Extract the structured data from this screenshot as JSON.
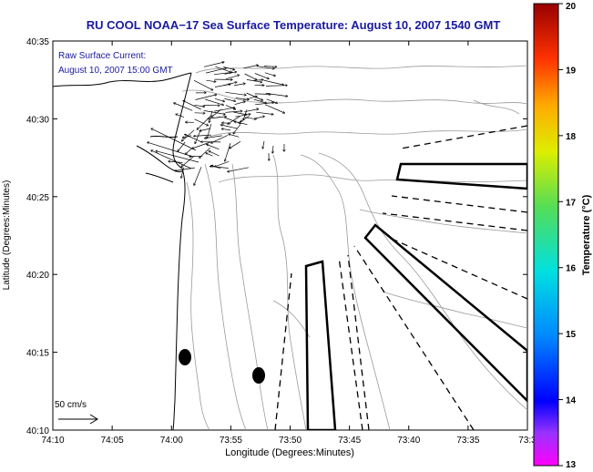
{
  "title": "RU COOL  NOAA−17  Sea Surface Temperature:  August 10, 2007 1540 GMT",
  "inset": {
    "line1": "Raw Surface Current:",
    "line2": "August 10, 2007 15:00 GMT"
  },
  "scale_label": "50 cm/s",
  "axes": {
    "xlabel": "Longitude (Degrees:Minutes)",
    "ylabel": "Latitude (Degrees:Minutes)",
    "x_ticks": [
      "74:10",
      "74:05",
      "74:00",
      "73:55",
      "73:50",
      "73:45",
      "73:40",
      "73:35",
      "73:3"
    ],
    "y_ticks": [
      "40:35",
      "40:30",
      "40:25",
      "40:20",
      "40:15",
      "40:10"
    ]
  },
  "colorbar": {
    "label": "Temperature (°C)",
    "ticks": [
      "20",
      "19",
      "18",
      "17",
      "16",
      "15",
      "14",
      "13"
    ],
    "min": 13,
    "max": 20
  },
  "colors": {
    "title": "#1a1aa0",
    "inset_text": "#1a1aa0",
    "contour": "#9a9a9a",
    "coast": "#000000"
  }
}
